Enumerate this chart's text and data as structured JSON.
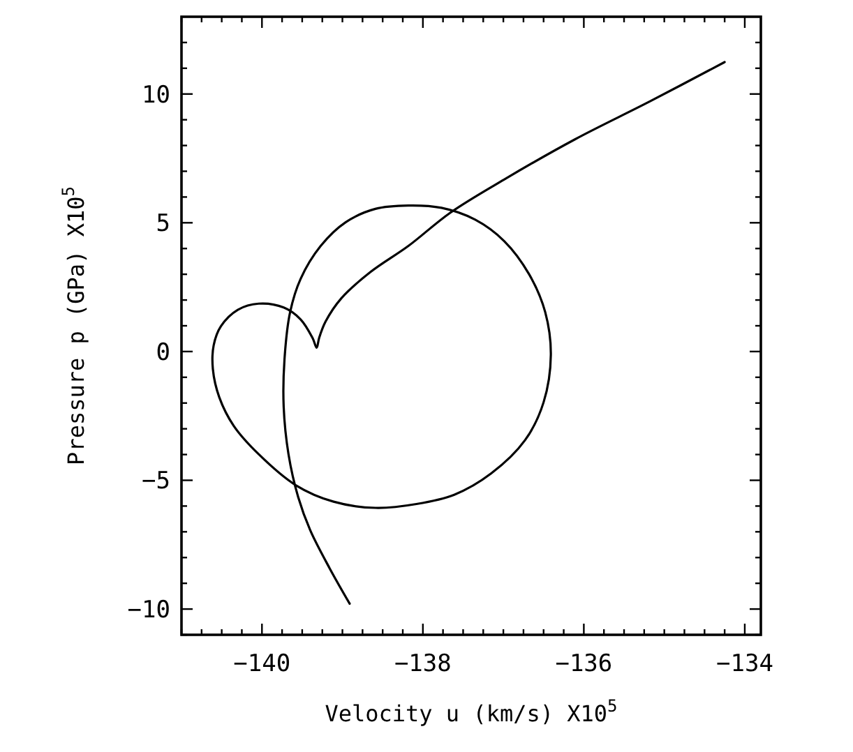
{
  "chart_data": {
    "type": "line",
    "xlabel": "Velocity u (km/s) X10$^{5}$",
    "ylabel": "Pressure p (GPa)  X10$^{5}$",
    "xlim": [
      -141,
      -133.8
    ],
    "ylim": [
      -11,
      13
    ],
    "xticks": [
      {
        "value": -141,
        "label": null
      },
      {
        "value": -140.75,
        "label": null
      },
      {
        "value": -140.5,
        "label": null
      },
      {
        "value": -140.25,
        "label": null
      },
      -140,
      {
        "value": -139.75,
        "label": null
      },
      {
        "value": -139.5,
        "label": null
      },
      {
        "value": -139.25,
        "label": null
      },
      {
        "value": -139,
        "label": null
      },
      {
        "value": -138.75,
        "label": null
      },
      {
        "value": -138.5,
        "label": null
      },
      {
        "value": -138.25,
        "label": null
      },
      -138,
      {
        "value": -137.75,
        "label": null
      },
      {
        "value": -137.5,
        "label": null
      },
      {
        "value": -137.25,
        "label": null
      },
      {
        "value": -137,
        "label": null
      },
      {
        "value": -136.75,
        "label": null
      },
      {
        "value": -136.5,
        "label": null
      },
      {
        "value": -136.25,
        "label": null
      },
      -136,
      {
        "value": -135.75,
        "label": null
      },
      {
        "value": -135.5,
        "label": null
      },
      {
        "value": -135.25,
        "label": null
      },
      {
        "value": -135,
        "label": null
      },
      {
        "value": -134.75,
        "label": null
      },
      {
        "value": -134.5,
        "label": null
      },
      {
        "value": -134.25,
        "label": null
      },
      -134
    ],
    "yticks": [
      {
        "value": -11,
        "label": null
      },
      -10,
      {
        "value": -9,
        "label": null
      },
      {
        "value": -8,
        "label": null
      },
      {
        "value": -7,
        "label": null
      },
      {
        "value": -6,
        "label": null
      },
      -5,
      {
        "value": -4,
        "label": null
      },
      {
        "value": -3,
        "label": null
      },
      {
        "value": -2,
        "label": null
      },
      {
        "value": -1,
        "label": null
      },
      0,
      {
        "value": 1,
        "label": null
      },
      {
        "value": 2,
        "label": null
      },
      {
        "value": 3,
        "label": null
      },
      {
        "value": 4,
        "label": null
      },
      5,
      {
        "value": 6,
        "label": null
      },
      {
        "value": 7,
        "label": null
      },
      {
        "value": 8,
        "label": null
      },
      {
        "value": 9,
        "label": null
      },
      10,
      {
        "value": 11,
        "label": null
      },
      {
        "value": 12,
        "label": null
      }
    ],
    "grid": false,
    "marker": "none",
    "line_style": "solid",
    "series": [
      {
        "color": "#000000",
        "x": [
          -134.25,
          -135.18,
          -136.11,
          -136.99,
          -137.66,
          -138.18,
          -138.65,
          -139.01,
          -139.21,
          -139.29,
          -139.32,
          -139.37,
          -139.52,
          -139.73,
          -140.04,
          -140.3,
          -140.51,
          -140.6,
          -140.61,
          -140.53,
          -140.35,
          -140.04,
          -139.58,
          -139.11,
          -138.59,
          -138.08,
          -137.61,
          -137.15,
          -136.73,
          -136.5,
          -136.41,
          -136.48,
          -136.68,
          -136.99,
          -137.35,
          -137.77,
          -138.18,
          -138.59,
          -138.96,
          -139.27,
          -139.52,
          -139.65,
          -139.72,
          -139.73,
          -139.67,
          -139.55,
          -139.4,
          -139.16,
          -138.91
        ],
        "values": [
          11.24,
          9.71,
          8.24,
          6.68,
          5.39,
          4.1,
          3.09,
          2.08,
          1.16,
          0.52,
          0.15,
          0.52,
          1.25,
          1.71,
          1.86,
          1.62,
          0.98,
          0.24,
          -0.68,
          -1.78,
          -2.89,
          -3.99,
          -5.19,
          -5.83,
          -6.07,
          -5.92,
          -5.56,
          -4.73,
          -3.44,
          -1.97,
          -0.13,
          1.53,
          3.0,
          4.29,
          5.12,
          5.58,
          5.67,
          5.54,
          5.02,
          4.1,
          2.82,
          1.53,
          -0.31,
          -2.15,
          -3.99,
          -5.65,
          -6.94,
          -8.41,
          -9.79
        ]
      }
    ]
  }
}
